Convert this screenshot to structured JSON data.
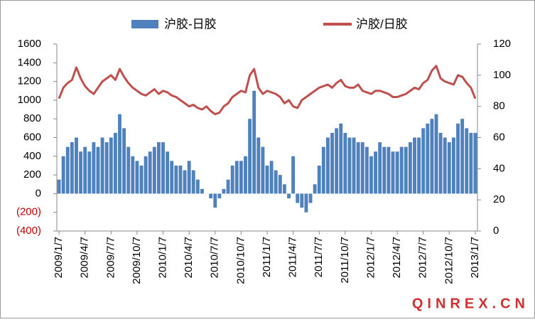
{
  "chart_data": {
    "type": "bar-line",
    "categories": [
      "2009/1/7",
      null,
      null,
      null,
      null,
      null,
      "2009/4/7",
      null,
      null,
      null,
      null,
      null,
      "2009/7/7",
      null,
      null,
      null,
      null,
      null,
      "2009/10/7",
      null,
      null,
      null,
      null,
      null,
      "2010/1/7",
      null,
      null,
      null,
      null,
      null,
      "2010/4/7",
      null,
      null,
      null,
      null,
      null,
      "2010/7/7",
      null,
      null,
      null,
      null,
      null,
      "2010/10/7",
      null,
      null,
      null,
      null,
      null,
      "2011/1/7",
      null,
      null,
      null,
      null,
      null,
      "2011/4/7",
      null,
      null,
      null,
      null,
      null,
      "2011/7/7",
      null,
      null,
      null,
      null,
      null,
      "2011/10/7",
      null,
      null,
      null,
      null,
      null,
      "2012/1/7",
      null,
      null,
      null,
      null,
      null,
      "2012/4/7",
      null,
      null,
      null,
      null,
      null,
      "2012/7/7",
      null,
      null,
      null,
      null,
      null,
      "2012/10/7",
      null,
      null,
      null,
      null,
      null,
      "2013/1/7"
    ],
    "series": [
      {
        "name": "沪胶-日胶",
        "type": "bar",
        "color": "#4f81bd",
        "values": [
          150,
          400,
          500,
          550,
          600,
          450,
          500,
          450,
          550,
          500,
          600,
          550,
          600,
          650,
          850,
          700,
          500,
          400,
          350,
          300,
          400,
          450,
          500,
          550,
          550,
          450,
          350,
          300,
          300,
          250,
          350,
          250,
          150,
          50,
          0,
          -50,
          -150,
          -50,
          50,
          150,
          300,
          350,
          350,
          400,
          800,
          1100,
          600,
          500,
          300,
          350,
          250,
          200,
          100,
          -50,
          400,
          -100,
          -150,
          -200,
          -100,
          100,
          300,
          500,
          600,
          650,
          700,
          750,
          650,
          600,
          600,
          550,
          550,
          500,
          400,
          450,
          550,
          500,
          500,
          450,
          450,
          500,
          500,
          550,
          600,
          600,
          700,
          750,
          800,
          850,
          650,
          600,
          550,
          600,
          750,
          800,
          700,
          650,
          650
        ]
      },
      {
        "name": "沪胶/日胶",
        "type": "line",
        "axis": "y2",
        "color": "#c0504d",
        "values": [
          85,
          92,
          95,
          97,
          105,
          98,
          93,
          90,
          88,
          92,
          96,
          98,
          100,
          97,
          104,
          99,
          95,
          92,
          90,
          88,
          87,
          89,
          91,
          88,
          90,
          89,
          87,
          86,
          84,
          82,
          80,
          81,
          79,
          78,
          80,
          77,
          75,
          76,
          80,
          82,
          86,
          88,
          90,
          89,
          100,
          104,
          92,
          88,
          90,
          89,
          88,
          86,
          82,
          84,
          80,
          79,
          84,
          86,
          88,
          90,
          92,
          93,
          94,
          92,
          95,
          97,
          93,
          92,
          92,
          94,
          90,
          89,
          88,
          90,
          90,
          89,
          88,
          86,
          86,
          87,
          88,
          90,
          92,
          91,
          95,
          97,
          103,
          106,
          98,
          96,
          95,
          94,
          100,
          99,
          95,
          92,
          85
        ]
      }
    ],
    "ylim": [
      -400,
      1600
    ],
    "yticks": [
      {
        "value": -400,
        "label": "(400)"
      },
      {
        "value": -200,
        "label": "(200)"
      },
      0,
      200,
      400,
      600,
      800,
      1000,
      1200,
      1400,
      1600
    ],
    "y2lim": [
      0,
      120
    ],
    "y2ticks": [
      0,
      20,
      40,
      60,
      80,
      100,
      120
    ],
    "negative_tick_color": "#c00000",
    "grid": false,
    "legend": "top",
    "watermark": "QINREX.CN"
  }
}
